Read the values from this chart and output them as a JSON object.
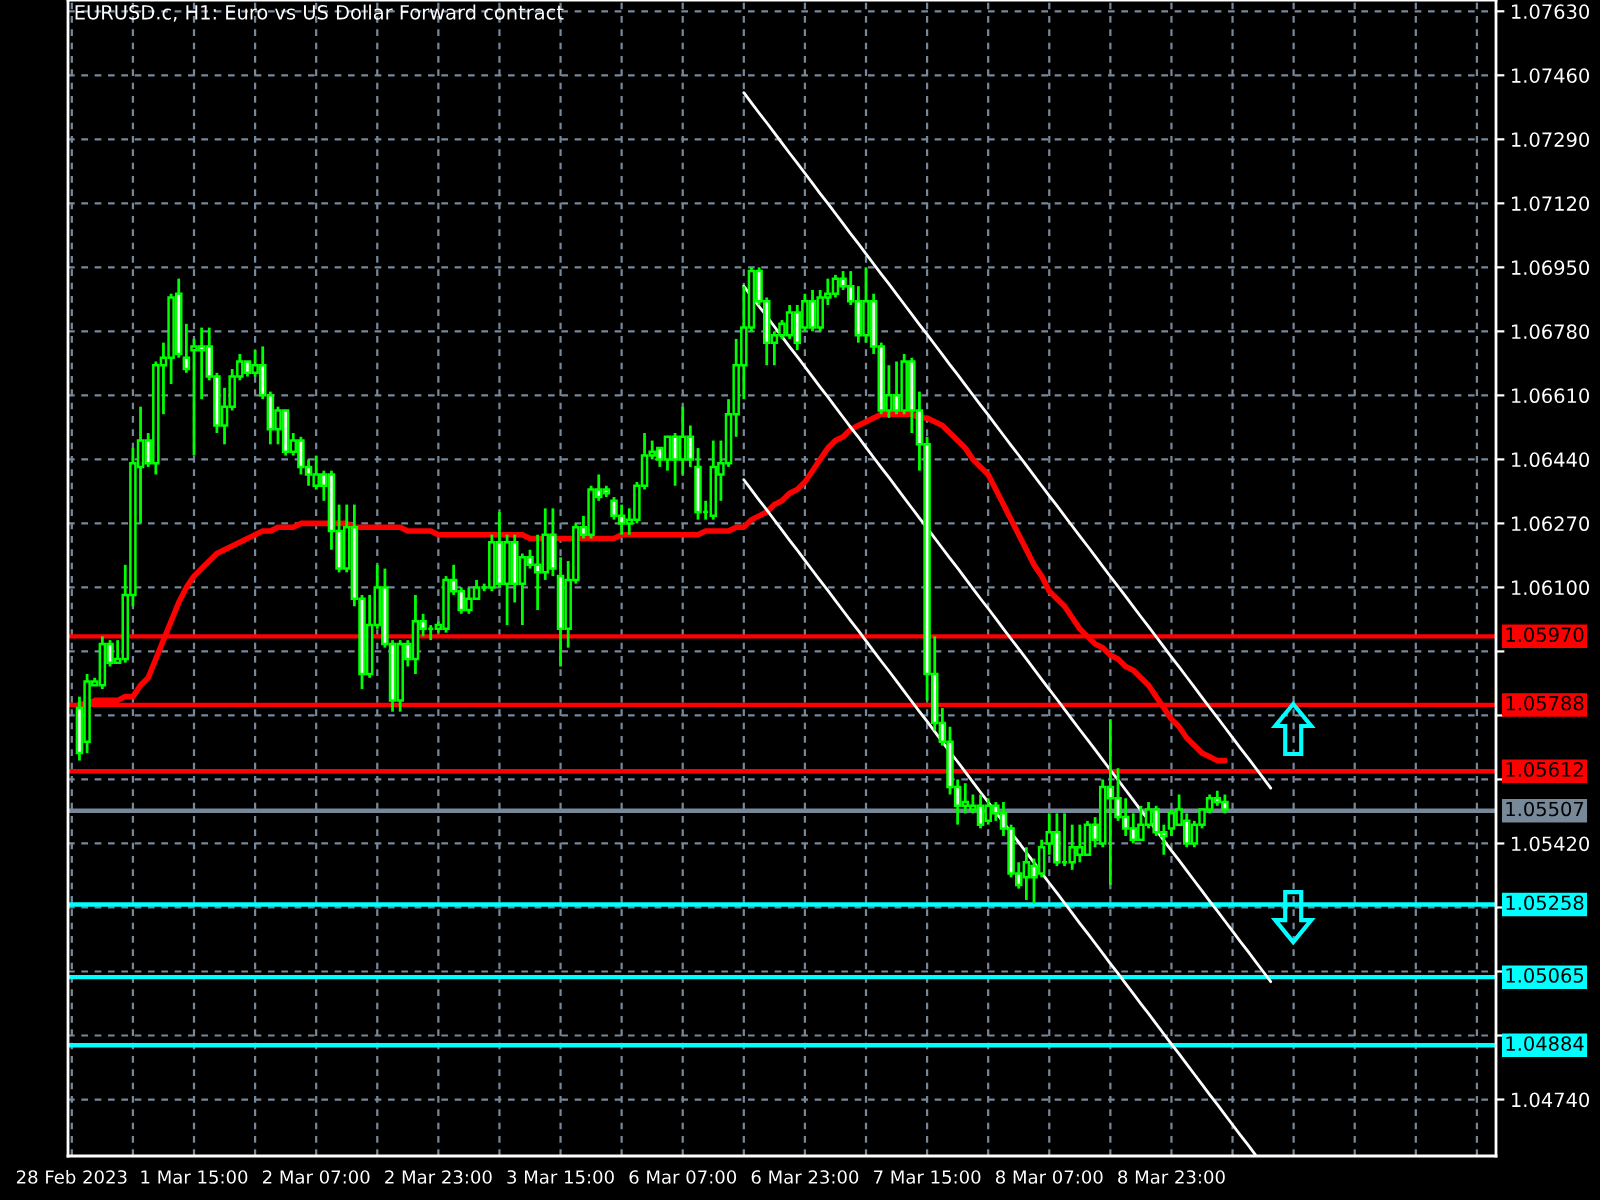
{
  "chart_data": {
    "type": "candlestick",
    "title": "EURUSD.c, H1: Euro vs US Dollar Forward contract",
    "categories": [
      "28 Feb 2023",
      null,
      null,
      null,
      null,
      null,
      null,
      null,
      null,
      null,
      null,
      null,
      null,
      null,
      null,
      null,
      "1 Mar 15:00",
      null,
      null,
      null,
      null,
      null,
      null,
      null,
      null,
      null,
      null,
      null,
      null,
      null,
      null,
      null,
      "2 Mar 07:00",
      null,
      null,
      null,
      null,
      null,
      null,
      null,
      null,
      null,
      null,
      null,
      null,
      null,
      null,
      null,
      "2 Mar 23:00",
      null,
      null,
      null,
      null,
      null,
      null,
      null,
      null,
      null,
      null,
      null,
      null,
      null,
      null,
      null,
      "3 Mar 15:00",
      null,
      null,
      null,
      null,
      null,
      null,
      null,
      null,
      null,
      null,
      null,
      null,
      null,
      null,
      null,
      "6 Mar 07:00",
      null,
      null,
      null,
      null,
      null,
      null,
      null,
      null,
      null,
      null,
      null,
      null,
      null,
      null,
      null,
      "6 Mar 23:00",
      null,
      null,
      null,
      null,
      null,
      null,
      null,
      null,
      null,
      null,
      null,
      null,
      null,
      null,
      null,
      "7 Mar 15:00",
      null,
      null,
      null,
      null,
      null,
      null,
      null,
      null,
      null,
      null,
      null,
      null,
      null,
      null,
      null,
      "8 Mar 07:00",
      null,
      null,
      null,
      null,
      null,
      null,
      null,
      null,
      null,
      null,
      null,
      null,
      null,
      null,
      null,
      "8 Mar 23:00",
      null,
      null,
      null,
      null,
      null,
      null,
      null,
      null,
      null,
      null,
      null,
      null,
      null,
      null,
      null,
      null,
      null,
      null,
      null,
      null,
      null,
      null,
      null,
      null,
      null,
      null,
      null,
      null,
      null,
      null,
      null,
      null,
      null,
      null,
      null,
      null,
      null,
      null,
      null,
      null,
      null,
      null
    ],
    "series": [
      {
        "color": "#00ff00",
        "ohlc": [
          null,
          [
            1.0578,
            1.0581,
            1.0564,
            1.0566
          ],
          [
            1.0569,
            1.0587,
            1.0566,
            1.0585
          ],
          [
            1.0584,
            1.0586,
            1.0584,
            1.0585
          ],
          [
            1.0584,
            1.0597,
            1.0583,
            1.0595
          ],
          [
            1.0595,
            1.0596,
            1.0589,
            1.059
          ],
          [
            1.059,
            1.0596,
            1.059,
            1.0591
          ],
          [
            1.0591,
            1.0616,
            1.059,
            1.0608
          ],
          [
            1.0608,
            1.0647,
            1.0605,
            1.0643
          ],
          [
            1.0642,
            1.0658,
            1.0627,
            1.0649
          ],
          [
            1.0649,
            1.0651,
            1.0642,
            1.0643
          ],
          [
            1.0643,
            1.067,
            1.064,
            1.0669
          ],
          [
            1.0669,
            1.0675,
            1.0656,
            1.0671
          ],
          [
            1.0671,
            1.0688,
            1.0664,
            1.0687
          ],
          [
            1.0688,
            1.0692,
            1.0671,
            1.0672
          ],
          [
            1.0671,
            1.068,
            1.0667,
            1.0668
          ],
          [
            1.0673,
            1.0676,
            1.0645,
            1.0674
          ],
          [
            1.0674,
            1.0679,
            1.066,
            1.0673
          ],
          [
            1.0674,
            1.0679,
            1.0665,
            1.0666
          ],
          [
            1.0666,
            1.0667,
            1.0651,
            1.0653
          ],
          [
            1.0653,
            1.0663,
            1.0648,
            1.0658
          ],
          [
            1.0658,
            1.0668,
            1.0657,
            1.0666
          ],
          [
            1.0666,
            1.0672,
            1.0665,
            1.067
          ],
          [
            1.067,
            1.067,
            1.0666,
            1.0667
          ],
          [
            1.0667,
            1.0673,
            1.0666,
            1.0669
          ],
          [
            1.0669,
            1.0674,
            1.066,
            1.0661
          ],
          [
            1.0661,
            1.0662,
            1.0648,
            1.0652
          ],
          [
            1.0652,
            1.0658,
            1.0648,
            1.0657
          ],
          [
            1.0657,
            1.0657,
            1.0645,
            1.0646
          ],
          [
            1.0646,
            1.0651,
            1.0645,
            1.0649
          ],
          [
            1.0649,
            1.065,
            1.064,
            1.0642
          ],
          [
            1.0642,
            1.0644,
            1.0637,
            1.064
          ],
          [
            1.0637,
            1.0645,
            1.0636,
            1.064
          ],
          [
            1.064,
            1.0641,
            1.0633,
            1.0637
          ],
          [
            1.064,
            1.0641,
            1.062,
            1.0625
          ],
          [
            1.0625,
            1.0632,
            1.0614,
            1.0615
          ],
          [
            1.0615,
            1.0632,
            1.0614,
            1.0626
          ],
          [
            1.0626,
            1.0632,
            1.0605,
            1.0607
          ],
          [
            1.0607,
            1.0608,
            1.0583,
            1.0587
          ],
          [
            1.0587,
            1.0608,
            1.0586,
            1.06
          ],
          [
            1.06,
            1.0616,
            1.0599,
            1.061
          ],
          [
            1.061,
            1.0615,
            1.0594,
            1.0595
          ],
          [
            1.0595,
            1.0596,
            1.0577,
            1.058
          ],
          [
            1.058,
            1.0596,
            1.0577,
            1.0595
          ],
          [
            1.0595,
            1.0596,
            1.0589,
            1.0591
          ],
          [
            1.0591,
            1.0608,
            1.0587,
            1.0601
          ],
          [
            1.0601,
            1.0603,
            1.0597,
            1.0599
          ],
          [
            1.0599,
            1.06,
            1.0596,
            1.0599
          ],
          [
            1.0599,
            1.0601,
            1.0598,
            1.06
          ],
          [
            1.0599,
            1.0613,
            1.0598,
            1.0612
          ],
          [
            1.0612,
            1.0616,
            1.0608,
            1.0609
          ],
          [
            1.0609,
            1.061,
            1.0603,
            1.0604
          ],
          [
            1.0604,
            1.061,
            1.0603,
            1.0607
          ],
          [
            1.0607,
            1.0612,
            1.0607,
            1.061
          ],
          [
            1.061,
            1.0611,
            1.0609,
            1.061
          ],
          [
            1.061,
            1.0624,
            1.0609,
            1.0622
          ],
          [
            1.0622,
            1.063,
            1.061,
            1.0611
          ],
          [
            1.0611,
            1.0624,
            1.06,
            1.0622
          ],
          [
            1.0622,
            1.0624,
            1.0606,
            1.0611
          ],
          [
            1.0611,
            1.0619,
            1.06,
            1.0618
          ],
          [
            1.0618,
            1.062,
            1.0615,
            1.0616
          ],
          [
            1.0616,
            1.0624,
            1.0604,
            1.0614
          ],
          [
            1.0614,
            1.0631,
            1.0612,
            1.0624
          ],
          [
            1.0624,
            1.0631,
            1.0613,
            1.0615
          ],
          [
            1.0613,
            1.0618,
            1.0589,
            1.0599
          ],
          [
            1.0599,
            1.0617,
            1.0594,
            1.0612
          ],
          [
            1.0612,
            1.0627,
            1.0611,
            1.0626
          ],
          [
            1.0626,
            1.0629,
            1.0623,
            1.0624
          ],
          [
            1.0624,
            1.0637,
            1.0623,
            1.0636
          ],
          [
            1.0636,
            1.064,
            1.0633,
            1.0634
          ],
          [
            1.0636,
            1.0637,
            1.0634,
            1.0635
          ],
          [
            1.0633,
            1.0634,
            1.0628,
            1.0629
          ],
          [
            1.0629,
            1.0632,
            1.0624,
            1.0627
          ],
          [
            1.0627,
            1.0631,
            1.0624,
            1.0628
          ],
          [
            1.0628,
            1.0638,
            1.0627,
            1.0637
          ],
          [
            1.0637,
            1.0651,
            1.0636,
            1.0645
          ],
          [
            1.0645,
            1.0649,
            1.0644,
            1.0646
          ],
          [
            1.0647,
            1.0647,
            1.0642,
            1.0644
          ],
          [
            1.0644,
            1.065,
            1.0641,
            1.065
          ],
          [
            1.065,
            1.0651,
            1.0637,
            1.0644
          ],
          [
            1.0644,
            1.0658,
            1.064,
            1.065
          ],
          [
            1.065,
            1.0653,
            1.0642,
            1.0644
          ],
          [
            1.0642,
            1.0647,
            1.0628,
            1.063
          ],
          [
            1.063,
            1.0633,
            1.0628,
            1.063
          ],
          [
            1.0629,
            1.0649,
            1.0628,
            1.0642
          ],
          [
            1.064,
            1.0649,
            1.0633,
            1.0643
          ],
          [
            1.0643,
            1.066,
            1.0642,
            1.0656
          ],
          [
            1.0656,
            1.0676,
            1.065,
            1.0669
          ],
          [
            1.0669,
            1.069,
            1.066,
            1.0679
          ],
          [
            1.0679,
            1.0695,
            1.0678,
            1.0694
          ],
          [
            1.0694,
            1.0695,
            1.0685,
            1.0686
          ],
          [
            1.0686,
            1.0687,
            1.0669,
            1.0675
          ],
          [
            1.0675,
            1.0678,
            1.0669,
            1.0677
          ],
          [
            1.0677,
            1.0681,
            1.0676,
            1.068
          ],
          [
            1.0677,
            1.0685,
            1.0676,
            1.0683
          ],
          [
            1.0683,
            1.0685,
            1.0673,
            1.0675
          ],
          [
            1.0679,
            1.0688,
            1.0678,
            1.0686
          ],
          [
            1.0686,
            1.0689,
            1.0678,
            1.0679
          ],
          [
            1.0679,
            1.0689,
            1.0678,
            1.0687
          ],
          [
            1.0687,
            1.0692,
            1.0685,
            1.0688
          ],
          [
            1.0688,
            1.0693,
            1.0687,
            1.0692
          ],
          [
            1.0692,
            1.0694,
            1.0689,
            1.069
          ],
          [
            1.069,
            1.0694,
            1.0685,
            1.0686
          ],
          [
            1.0686,
            1.069,
            1.0675,
            1.0677
          ],
          [
            1.0677,
            1.0695,
            1.0675,
            1.0686
          ],
          [
            1.0686,
            1.0688,
            1.0672,
            1.0674
          ],
          [
            1.0674,
            1.0675,
            1.0656,
            1.0657
          ],
          [
            1.0657,
            1.0669,
            1.0655,
            1.0661
          ],
          [
            1.0661,
            1.067,
            1.0656,
            1.0657
          ],
          [
            1.0657,
            1.0672,
            1.0656,
            1.067
          ],
          [
            1.067,
            1.0671,
            1.0651,
            1.0657
          ],
          [
            1.0657,
            1.0662,
            1.0641,
            1.0648
          ],
          [
            1.0648,
            1.065,
            1.058,
            1.0587
          ],
          [
            1.0587,
            1.0597,
            1.0572,
            1.0574
          ],
          [
            1.0574,
            1.0578,
            1.0568,
            1.0569
          ],
          [
            1.0569,
            1.0573,
            1.0555,
            1.0557
          ],
          [
            1.0557,
            1.0559,
            1.0547,
            1.0552
          ],
          [
            1.0552,
            1.0558,
            1.055,
            1.0553
          ],
          [
            1.0551,
            1.0555,
            1.055,
            1.0552
          ],
          [
            1.0552,
            1.0555,
            1.0546,
            1.0547
          ],
          [
            1.0548,
            1.0554,
            1.0547,
            1.0552
          ],
          [
            1.0552,
            1.0553,
            1.0548,
            1.055
          ],
          [
            1.055,
            1.0553,
            1.0544,
            1.0546
          ],
          [
            1.0546,
            1.0547,
            1.0533,
            1.0534
          ],
          [
            1.0534,
            1.0537,
            1.053,
            1.0531
          ],
          [
            1.0533,
            1.0541,
            1.0527,
            1.0537
          ],
          [
            1.0536,
            1.0538,
            1.0526,
            1.0533
          ],
          [
            1.0534,
            1.0543,
            1.0533,
            1.0541
          ],
          [
            1.0542,
            1.055,
            1.0539,
            1.0545
          ],
          [
            1.0545,
            1.055,
            1.0536,
            1.0537
          ],
          [
            1.0537,
            1.055,
            1.0536,
            1.0537
          ],
          [
            1.0537,
            1.0547,
            1.0535,
            1.0541
          ],
          [
            1.0539,
            1.0547,
            1.0537,
            1.0541
          ],
          [
            1.0539,
            1.0548,
            1.0539,
            1.0547
          ],
          [
            1.0547,
            1.0549,
            1.0541,
            1.0543
          ],
          [
            1.0542,
            1.0559,
            1.0541,
            1.0557
          ],
          [
            1.0557,
            1.0575,
            1.0531,
            1.0554
          ],
          [
            1.0554,
            1.0562,
            1.0548,
            1.0549
          ],
          [
            1.0549,
            1.0554,
            1.0544,
            1.0546
          ],
          [
            1.0546,
            1.055,
            1.0542,
            1.0543
          ],
          [
            1.0543,
            1.0552,
            1.0543,
            1.0547
          ],
          [
            1.0547,
            1.0553,
            1.0546,
            1.0551
          ],
          [
            1.0551,
            1.0552,
            1.0544,
            1.0545
          ],
          [
            1.0545,
            1.0547,
            1.0539,
            1.0544
          ],
          [
            1.0546,
            1.0551,
            1.0544,
            1.055
          ],
          [
            1.0547,
            1.0555,
            1.0547,
            1.0551
          ],
          [
            1.0548,
            1.055,
            1.0541,
            1.0542
          ],
          [
            1.0542,
            1.0548,
            1.0541,
            1.0547
          ],
          [
            1.0547,
            1.0551,
            1.0546,
            1.0551
          ],
          [
            1.0551,
            1.0555,
            1.055,
            1.0554
          ],
          [
            1.0554,
            1.0556,
            1.0552,
            1.0553
          ],
          [
            1.0553,
            1.0555,
            1.055,
            1.0551
          ],
          null,
          null,
          null,
          null,
          null,
          null,
          null,
          null,
          null,
          null,
          null,
          null,
          null,
          null,
          null,
          null,
          null,
          null,
          null,
          null,
          null,
          null,
          null,
          null,
          null,
          null,
          null,
          null,
          null,
          null,
          null,
          null,
          null,
          null,
          null
        ]
      },
      {
        "type": "line",
        "color": "#ff0000",
        "values": [
          null,
          1.0579,
          1.0579,
          1.058,
          1.058,
          1.058,
          1.058,
          1.0581,
          1.0581,
          1.0584,
          1.0586,
          1.0591,
          1.0596,
          1.0601,
          1.0606,
          1.061,
          1.0613,
          1.0615,
          1.0617,
          1.0619,
          1.062,
          1.0621,
          1.0622,
          1.0623,
          1.0624,
          1.0625,
          1.0625,
          1.0626,
          1.0626,
          1.0626,
          1.0627,
          1.0627,
          1.0627,
          1.0627,
          1.0627,
          1.0627,
          1.0627,
          1.0626,
          1.0626,
          1.0626,
          1.0626,
          1.0626,
          1.0626,
          1.0626,
          1.0625,
          1.0625,
          1.0625,
          1.0625,
          1.0624,
          1.0624,
          1.0624,
          1.0624,
          1.0624,
          1.0624,
          1.0624,
          1.0624,
          1.0624,
          1.0624,
          1.0624,
          1.0624,
          1.0623,
          1.0623,
          1.0623,
          1.0623,
          1.0623,
          1.0623,
          1.0623,
          1.0623,
          1.0623,
          1.0623,
          1.0623,
          1.0623,
          1.0624,
          1.0624,
          1.0624,
          1.0624,
          1.0624,
          1.0624,
          1.0624,
          1.0624,
          1.0624,
          1.0624,
          1.0624,
          1.0625,
          1.0625,
          1.0625,
          1.0625,
          1.0626,
          1.0626,
          1.0628,
          1.0629,
          1.063,
          1.0632,
          1.0633,
          1.0635,
          1.0636,
          1.0638,
          1.0641,
          1.0644,
          1.0647,
          1.0649,
          1.065,
          1.0652,
          1.0653,
          1.0654,
          1.0655,
          1.0656,
          1.0656,
          1.0656,
          1.0656,
          1.0656,
          1.0655,
          1.0655,
          1.0654,
          1.0653,
          1.0651,
          1.0649,
          1.0647,
          1.0644,
          1.0642,
          1.064,
          1.0636,
          1.0632,
          1.0628,
          1.0624,
          1.062,
          1.0616,
          1.0613,
          1.0609,
          1.0607,
          1.0605,
          1.0602,
          1.0599,
          1.0597,
          1.0595,
          1.0594,
          1.0592,
          1.0591,
          1.0589,
          1.0588,
          1.0586,
          1.0584,
          1.0581,
          1.0578,
          1.0575,
          1.0573,
          1.057,
          1.0568,
          1.0566,
          1.0565,
          1.0564,
          1.0564,
          null,
          null,
          null,
          null,
          null,
          null,
          null,
          null,
          null,
          null,
          null,
          null,
          null,
          null,
          null,
          null,
          null,
          null,
          null,
          null,
          null,
          null,
          null,
          null,
          null,
          null,
          null,
          null,
          null,
          null,
          null,
          null,
          null,
          null,
          null
        ]
      },
      {
        "type": "line",
        "color": "#ffffff",
        "values": [
          null,
          null,
          null,
          null,
          null,
          null,
          null,
          null,
          null,
          null,
          null,
          null,
          null,
          null,
          null,
          null,
          null,
          null,
          null,
          null,
          null,
          null,
          null,
          null,
          null,
          null,
          null,
          null,
          null,
          null,
          null,
          null,
          null,
          null,
          null,
          null,
          null,
          null,
          null,
          null,
          null,
          null,
          null,
          null,
          null,
          null,
          null,
          null,
          null,
          null,
          null,
          null,
          null,
          null,
          null,
          null,
          null,
          null,
          null,
          null,
          null,
          null,
          null,
          null,
          null,
          null,
          null,
          null,
          null,
          null,
          null,
          null,
          null,
          null,
          null,
          null,
          null,
          null,
          null,
          null,
          null,
          null,
          null,
          null,
          null,
          null,
          null,
          null,
          1.07414,
          1.07387,
          1.0736,
          1.07334,
          1.07307,
          1.0728,
          1.07253,
          1.07227,
          1.072,
          1.07173,
          1.07146,
          1.0712,
          1.07093,
          1.07066,
          1.07039,
          1.07013,
          1.06986,
          1.06959,
          1.06932,
          1.06906,
          1.06879,
          1.06852,
          1.06825,
          1.06798,
          1.06772,
          1.06745,
          1.06718,
          1.06691,
          1.06665,
          1.06638,
          1.06611,
          1.06584,
          1.06558,
          1.06531,
          1.06504,
          1.06477,
          1.06451,
          1.06424,
          1.06397,
          1.0637,
          1.06343,
          1.06317,
          1.0629,
          1.06263,
          1.06236,
          1.0621,
          1.06183,
          1.06156,
          1.06129,
          1.06103,
          1.06076,
          1.06049,
          1.06022,
          1.05996,
          1.05969,
          1.05942,
          1.05915,
          1.05889,
          1.05862,
          1.05835,
          1.05808,
          1.05781,
          1.05755,
          1.05728,
          1.05701,
          1.05674,
          1.05648,
          1.05621,
          1.05594,
          1.05567,
          null,
          null,
          null,
          null,
          null,
          null,
          null,
          null,
          null,
          null,
          null,
          null,
          null,
          null,
          null,
          null,
          null,
          null,
          null,
          null,
          null,
          null,
          null,
          null,
          null,
          null,
          null,
          null,
          null
        ]
      },
      {
        "type": "line",
        "color": "#ffffff",
        "values": [
          null,
          null,
          null,
          null,
          null,
          null,
          null,
          null,
          null,
          null,
          null,
          null,
          null,
          null,
          null,
          null,
          null,
          null,
          null,
          null,
          null,
          null,
          null,
          null,
          null,
          null,
          null,
          null,
          null,
          null,
          null,
          null,
          null,
          null,
          null,
          null,
          null,
          null,
          null,
          null,
          null,
          null,
          null,
          null,
          null,
          null,
          null,
          null,
          null,
          null,
          null,
          null,
          null,
          null,
          null,
          null,
          null,
          null,
          null,
          null,
          null,
          null,
          null,
          null,
          null,
          null,
          null,
          null,
          null,
          null,
          null,
          null,
          null,
          null,
          null,
          null,
          null,
          null,
          null,
          null,
          null,
          null,
          null,
          null,
          null,
          null,
          null,
          null,
          1.069,
          1.06873,
          1.06846,
          1.0682,
          1.06793,
          1.06766,
          1.06739,
          1.06713,
          1.06686,
          1.06659,
          1.06632,
          1.06606,
          1.06579,
          1.06552,
          1.06525,
          1.06499,
          1.06472,
          1.06445,
          1.06418,
          1.06392,
          1.06365,
          1.06338,
          1.06311,
          1.06284,
          1.06258,
          1.06231,
          1.06204,
          1.06177,
          1.06151,
          1.06124,
          1.06097,
          1.0607,
          1.06044,
          1.06017,
          1.0599,
          1.05963,
          1.05937,
          1.0591,
          1.05883,
          1.05856,
          1.05829,
          1.05803,
          1.05776,
          1.05749,
          1.05722,
          1.05696,
          1.05669,
          1.05642,
          1.05615,
          1.05589,
          1.05562,
          1.05535,
          1.05508,
          1.05482,
          1.05455,
          1.05428,
          1.05401,
          1.05375,
          1.05348,
          1.05321,
          1.05294,
          1.05267,
          1.05241,
          1.05214,
          1.05187,
          1.0516,
          1.05134,
          1.05107,
          1.0508,
          1.05053,
          null,
          null,
          null,
          null,
          null,
          null,
          null,
          null,
          null,
          null,
          null,
          null,
          null,
          null,
          null,
          null,
          null,
          null,
          null,
          null,
          null,
          null,
          null,
          null,
          null,
          null,
          null,
          null,
          null
        ]
      },
      {
        "type": "line",
        "color": "#ffffff",
        "values": [
          null,
          null,
          null,
          null,
          null,
          null,
          null,
          null,
          null,
          null,
          null,
          null,
          null,
          null,
          null,
          null,
          null,
          null,
          null,
          null,
          null,
          null,
          null,
          null,
          null,
          null,
          null,
          null,
          null,
          null,
          null,
          null,
          null,
          null,
          null,
          null,
          null,
          null,
          null,
          null,
          null,
          null,
          null,
          null,
          null,
          null,
          null,
          null,
          null,
          null,
          null,
          null,
          null,
          null,
          null,
          null,
          null,
          null,
          null,
          null,
          null,
          null,
          null,
          null,
          null,
          null,
          null,
          null,
          null,
          null,
          null,
          null,
          null,
          null,
          null,
          null,
          null,
          null,
          null,
          null,
          null,
          null,
          null,
          null,
          null,
          null,
          null,
          null,
          1.06386,
          1.06359,
          1.06332,
          1.06306,
          1.06279,
          1.06252,
          1.06225,
          1.06199,
          1.06172,
          1.06145,
          1.06118,
          1.06092,
          1.06065,
          1.06038,
          1.06011,
          1.05985,
          1.05958,
          1.05931,
          1.05904,
          1.05878,
          1.05851,
          1.05824,
          1.05797,
          1.0577,
          1.05744,
          1.05717,
          1.0569,
          1.05663,
          1.05637,
          1.0561,
          1.05583,
          1.05556,
          1.0553,
          1.05503,
          1.05476,
          1.05449,
          1.05423,
          1.05396,
          1.05369,
          1.05342,
          1.05315,
          1.05289,
          1.05262,
          1.05235,
          1.05208,
          1.05182,
          1.05155,
          1.05128,
          1.05101,
          1.05075,
          1.05048,
          1.05021,
          1.04994,
          1.04968,
          1.04941,
          1.04914,
          1.04887,
          1.04861,
          1.04834,
          1.04807,
          1.0478,
          1.04753,
          1.04727,
          1.047,
          1.04673,
          1.04646,
          1.0462,
          1.04593,
          null,
          null,
          null,
          null,
          null,
          null,
          null,
          null,
          null,
          null,
          null,
          null,
          null,
          null,
          null,
          null,
          null,
          null,
          null,
          null,
          null,
          null,
          null,
          null,
          null,
          null,
          null,
          null,
          null,
          null,
          null
        ]
      }
    ],
    "ylim": [
      1.0459,
      1.0766
    ],
    "yticks": [
      {
        "value": 1.0763,
        "label": "1.07630"
      },
      {
        "value": 1.0746,
        "label": "1.07460"
      },
      {
        "value": 1.0729,
        "label": "1.07290"
      },
      {
        "value": 1.0712,
        "label": "1.07120"
      },
      {
        "value": 1.0695,
        "label": "1.06950"
      },
      {
        "value": 1.0678,
        "label": "1.06780"
      },
      {
        "value": 1.0661,
        "label": "1.06610"
      },
      {
        "value": 1.0644,
        "label": "1.06440"
      },
      {
        "value": 1.0627,
        "label": "1.06270"
      },
      {
        "value": 1.061,
        "label": "1.06100"
      },
      {
        "value": 1.0593,
        "label": null
      },
      {
        "value": 1.0576,
        "label": null
      },
      {
        "value": 1.0559,
        "label": null
      },
      {
        "value": 1.0542,
        "label": "1.05420"
      },
      {
        "value": 1.0525,
        "label": null
      },
      {
        "value": 1.0508,
        "label": null
      },
      {
        "value": 1.0491,
        "label": null
      },
      {
        "value": 1.0474,
        "label": "1.04740"
      }
    ],
    "ref_lines": [
      {
        "axis": "y",
        "value": 1.0597,
        "label": "1.05970",
        "color": "#ff0000"
      },
      {
        "axis": "y",
        "value": 1.05788,
        "label": "1.05788",
        "color": "#ff0000"
      },
      {
        "axis": "y",
        "value": 1.05612,
        "label": "1.05612",
        "color": "#ff0000"
      },
      {
        "axis": "y",
        "value": 1.05507,
        "label": "1.05507",
        "color": "#778899"
      },
      {
        "axis": "y",
        "value": 1.05258,
        "label": "1.05258",
        "color": "#00ffff"
      },
      {
        "axis": "y",
        "value": 1.05065,
        "label": "1.05065",
        "color": "#00ffff"
      },
      {
        "axis": "y",
        "value": 1.04884,
        "label": "1.04884",
        "color": "#00ffff"
      }
    ],
    "grid": true
  }
}
